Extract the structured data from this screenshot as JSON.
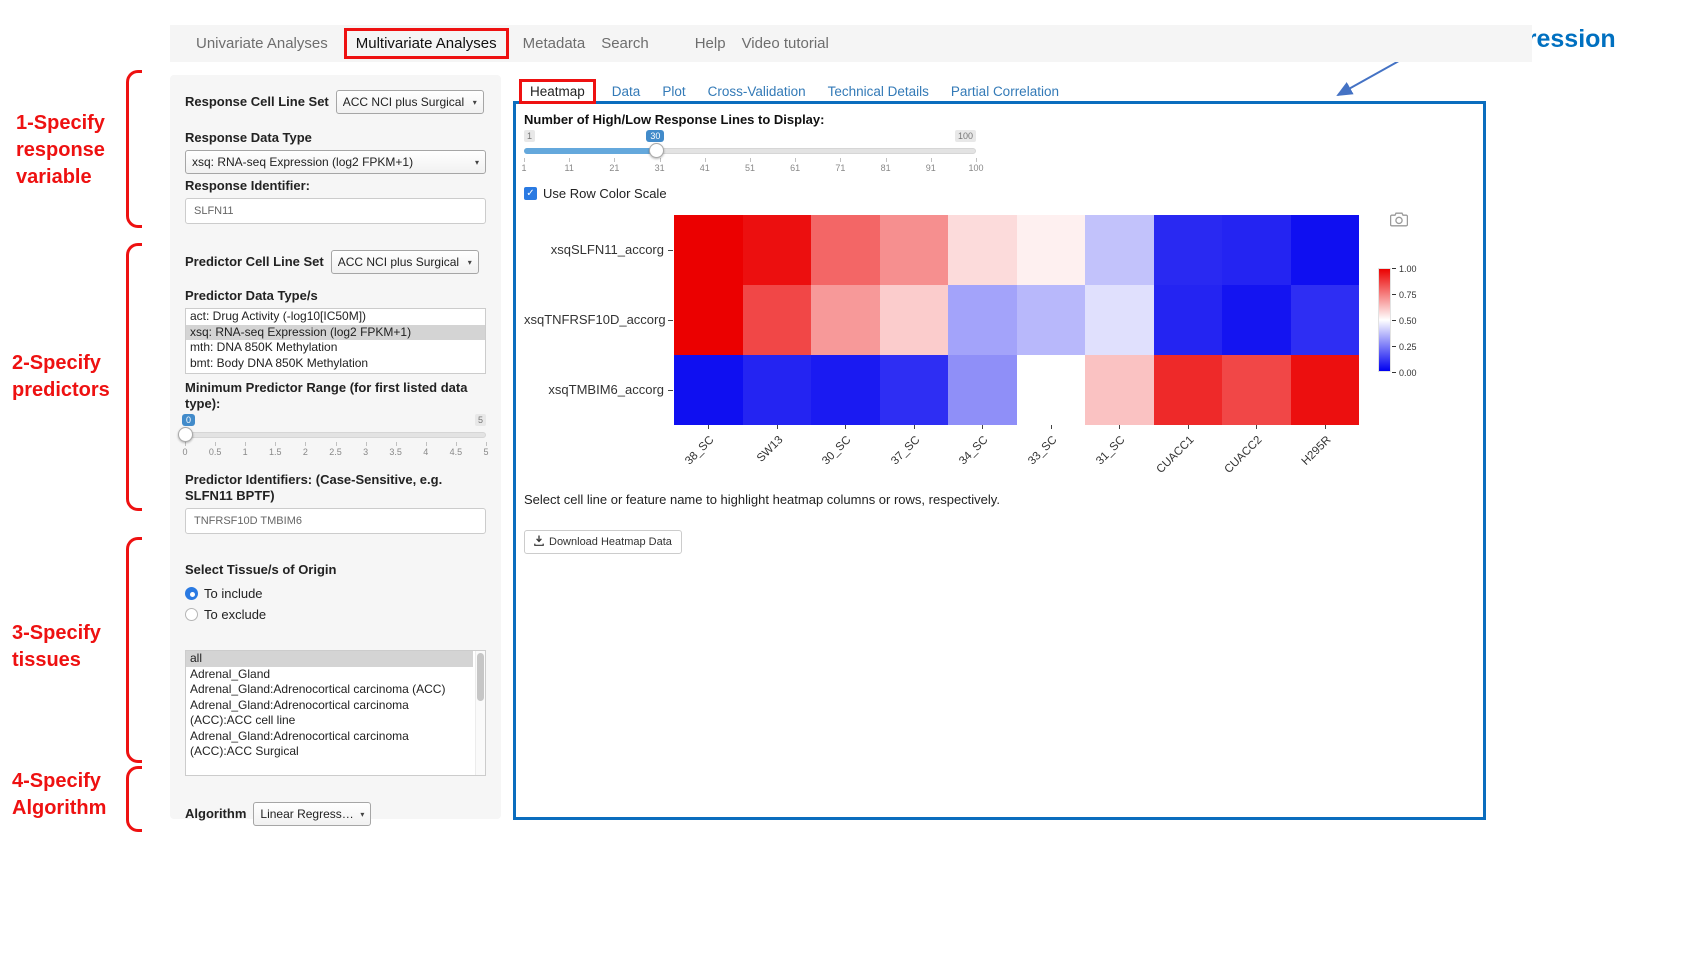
{
  "colors": {
    "accent_red": "#ee1111",
    "heading_blue": "#0070c0",
    "arrow_blue": "#4472c4",
    "panel_border_blue": "#0b6dbe",
    "link_blue": "#337ab7",
    "slider_blue": "#428bca",
    "checkbox_blue": "#2a7ae2"
  },
  "icons": {
    "chevron_down": "▾",
    "check": "✓",
    "camera": "camera-icon",
    "download": "download-icon"
  },
  "annotations": {
    "heading": "Heatmap based on linear regression",
    "steps": [
      "1-Specify\nresponse\nvariable",
      "2-Specify\npredictors",
      "3-Specify\ntissues",
      "4-Specify\nAlgorithm"
    ]
  },
  "navbar": {
    "items": [
      "Univariate Analyses",
      "Multivariate Analyses",
      "Metadata",
      "Search",
      "Help",
      "Video tutorial"
    ],
    "active": "Multivariate Analyses"
  },
  "sidebar": {
    "response_set": {
      "label": "Response Cell Line Set",
      "value": "ACC NCI plus Surgical"
    },
    "response_type": {
      "label": "Response Data Type",
      "value": "xsq: RNA-seq Expression (log2 FPKM+1)"
    },
    "response_id": {
      "label": "Response Identifier:",
      "value": "SLFN11"
    },
    "predictor_set": {
      "label": "Predictor Cell Line Set",
      "value": "ACC NCI plus Surgical"
    },
    "predictor_types": {
      "label": "Predictor Data Type/s",
      "options": [
        "act: Drug Activity (-log10[IC50M])",
        "xsq: RNA-seq Expression (log2 FPKM+1)",
        "mth: DNA 850K Methylation",
        "bmt: Body DNA 850K Methylation"
      ],
      "selected_index": 1
    },
    "range_slider": {
      "label": "Minimum Predictor Range (for first listed data type):",
      "value": "0",
      "min": "0",
      "max": "5",
      "ticks": [
        "0",
        "0.5",
        "1",
        "1.5",
        "2",
        "2.5",
        "3",
        "3.5",
        "4",
        "4.5",
        "5"
      ]
    },
    "predictor_ids": {
      "label": "Predictor Identifiers: (Case-Sensitive, e.g. SLFN11 BPTF)",
      "value": "TNFRSF10D TMBIM6"
    },
    "tissue": {
      "label": "Select Tissue/s of Origin",
      "include_label": "To include",
      "exclude_label": "To exclude",
      "include_selected": true,
      "options": [
        "all",
        "Adrenal_Gland",
        "Adrenal_Gland:Adrenocortical carcinoma (ACC)",
        "Adrenal_Gland:Adrenocortical carcinoma (ACC):ACC cell line",
        "Adrenal_Gland:Adrenocortical carcinoma (ACC):ACC Surgical"
      ],
      "selected_index": 0
    },
    "algorithm": {
      "label": "Algorithm",
      "value": "Linear Regression"
    }
  },
  "main": {
    "tabs": [
      "Heatmap",
      "Data",
      "Plot",
      "Cross-Validation",
      "Technical Details",
      "Partial Correlation"
    ],
    "active_tab": "Heatmap",
    "lines_slider": {
      "label": "Number of High/Low Response Lines to Display:",
      "min_label": "1",
      "max_label": "100",
      "value": "30",
      "ticks": [
        "1",
        "11",
        "21",
        "31",
        "41",
        "51",
        "61",
        "71",
        "81",
        "91",
        "100"
      ]
    },
    "row_color_checkbox": {
      "label": "Use Row Color Scale",
      "checked": true
    },
    "hint": "Select cell line or feature name to highlight heatmap columns or rows, respectively.",
    "download_button_label": "Download Heatmap Data"
  },
  "chart_data": {
    "type": "heatmap",
    "rows": [
      "xsqSLFN11_accorg",
      "xsqTNFRSF10D_accorg",
      "xsqTMBIM6_accorg"
    ],
    "columns": [
      "38_SC",
      "SW13",
      "30_SC",
      "37_SC",
      "34_SC",
      "33_SC",
      "31_SC",
      "CUACC1",
      "CUACC2",
      "H295R"
    ],
    "values": [
      [
        1.0,
        0.97,
        0.8,
        0.72,
        0.57,
        0.53,
        0.38,
        0.08,
        0.07,
        0.03
      ],
      [
        1.0,
        0.86,
        0.7,
        0.6,
        0.32,
        0.36,
        0.44,
        0.07,
        0.04,
        0.09
      ],
      [
        0.03,
        0.07,
        0.05,
        0.09,
        0.28,
        0.5,
        0.62,
        0.92,
        0.86,
        0.97
      ]
    ],
    "value_range": [
      0,
      1
    ],
    "colorscale": {
      "low": "#0000f0",
      "mid": "#ffffff",
      "high": "#eb0000"
    },
    "colorbar_ticks": [
      "1.00",
      "0.75",
      "0.50",
      "0.25",
      "0.00"
    ],
    "legend_position": "right"
  }
}
